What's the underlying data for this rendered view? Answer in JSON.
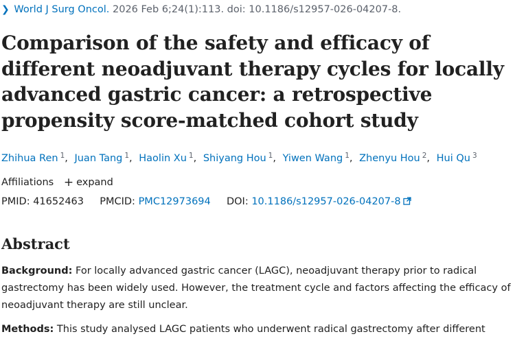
{
  "citation": {
    "journal": "World J Surg Oncol.",
    "details": "2026 Feb 6;24(1):113. doi: 10.1186/s12957-026-04207-8."
  },
  "title": "Comparison of the safety and efficacy of different neoadjuvant therapy cycles for locally advanced gastric cancer: a retrospective propensity score-matched cohort study",
  "authors": [
    {
      "name": "Zhihua Ren",
      "aff": "1"
    },
    {
      "name": "Juan Tang",
      "aff": "1"
    },
    {
      "name": "Haolin Xu",
      "aff": "1"
    },
    {
      "name": "Shiyang Hou",
      "aff": "1"
    },
    {
      "name": "Yiwen Wang",
      "aff": "1"
    },
    {
      "name": "Zhenyu Hou",
      "aff": "2"
    },
    {
      "name": "Hui Qu",
      "aff": "3"
    }
  ],
  "affiliations": {
    "label": "Affiliations",
    "expand_label": "expand"
  },
  "identifiers": {
    "pmid_label": "PMID:",
    "pmid": "41652463",
    "pmcid_label": "PMCID:",
    "pmcid": "PMC12973694",
    "doi_label": "DOI:",
    "doi": "10.1186/s12957-026-04207-8"
  },
  "abstract": {
    "heading": "Abstract",
    "background_label": "Background:",
    "background_text": "For locally advanced gastric cancer (LAGC), neoadjuvant therapy prior to radical gastrectomy has been widely used. However, the treatment cycle and factors affecting the efficacy of neoadjuvant therapy are still unclear.",
    "methods_label": "Methods:",
    "methods_text": "This study analysed LAGC patients who underwent radical gastrectomy after different"
  },
  "colors": {
    "link": "#0071bc",
    "text": "#212121",
    "muted": "#5b616b"
  },
  "icons": {
    "citation_chevron": "chevron-right-icon",
    "expand": "plus-icon",
    "doi_external": "external-link-icon"
  }
}
